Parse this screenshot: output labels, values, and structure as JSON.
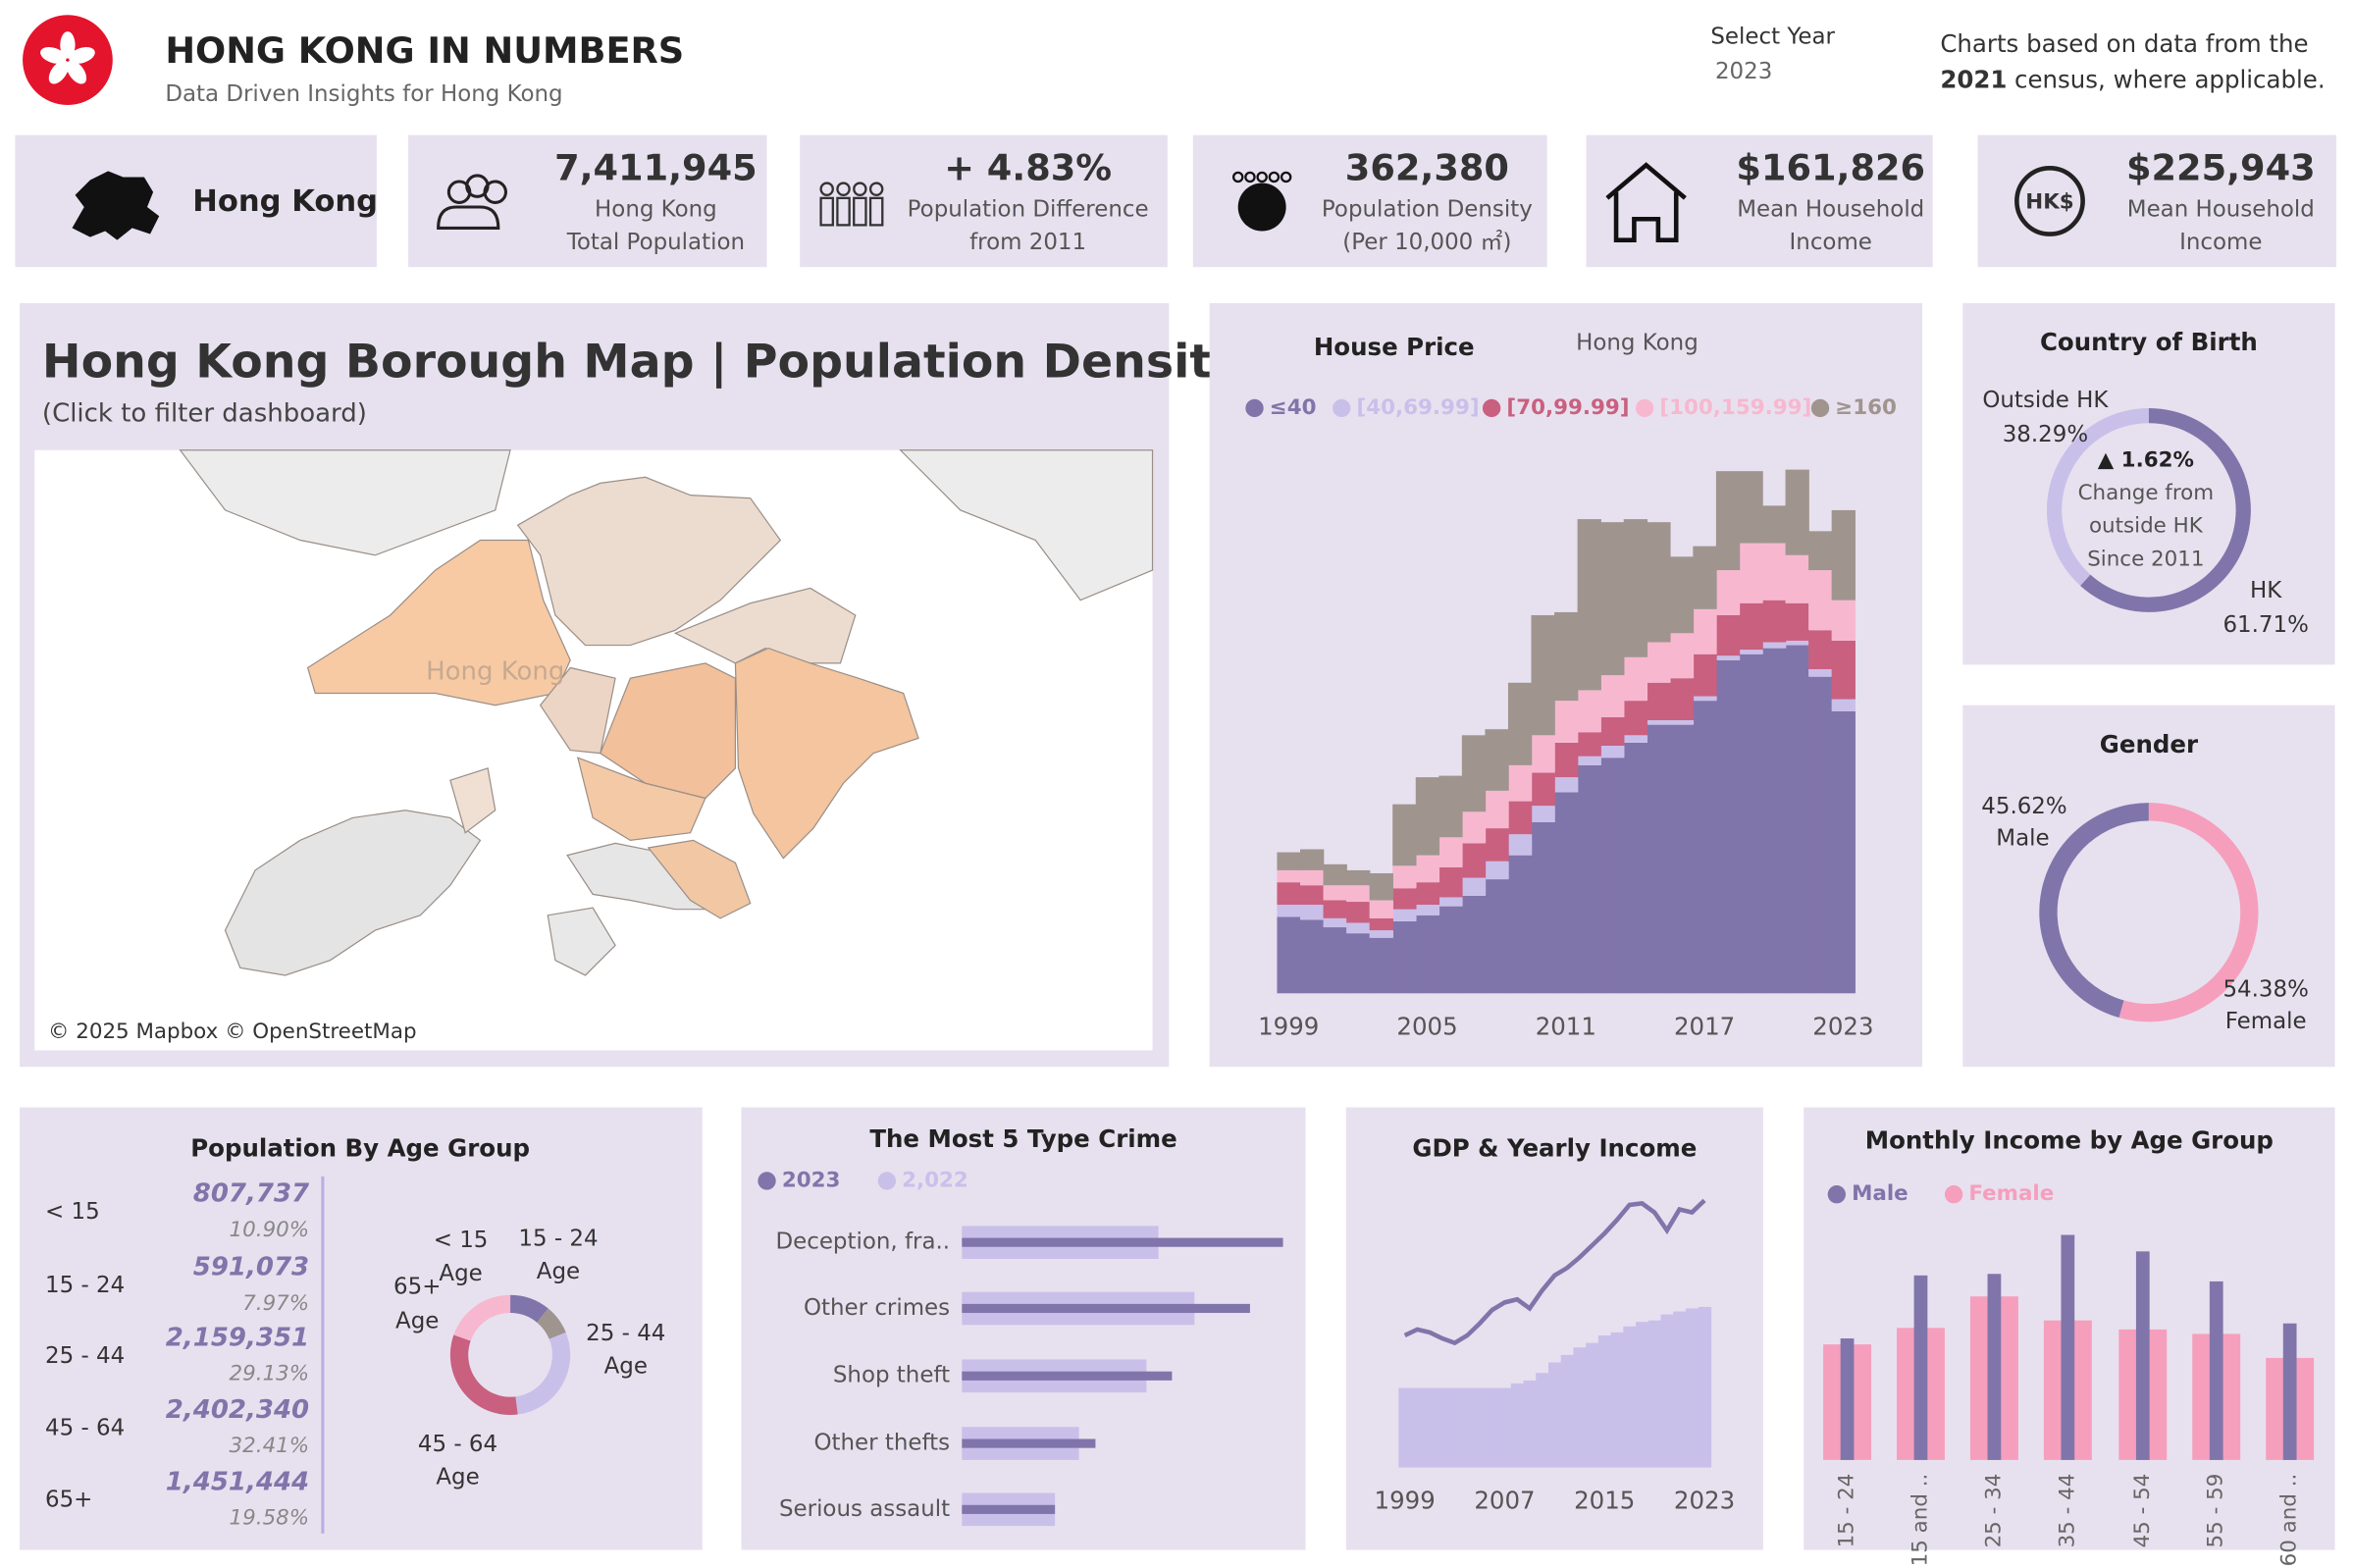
{
  "header": {
    "title": "HONG KONG IN NUMBERS",
    "subtitle": "Data Driven Insights for Hong Kong",
    "select_year_label": "Select Year",
    "select_year": "2023",
    "note": [
      "Charts based on data from the",
      "2021",
      "census, where applicable."
    ]
  },
  "kpis": [
    {
      "label": "Hong Kong"
    },
    {
      "value": "7,411,945",
      "lines": [
        "Hong Kong",
        "Total Population"
      ]
    },
    {
      "value": "+ 4.83%",
      "lines": [
        "Population Difference",
        "from 2011"
      ]
    },
    {
      "value": "362,380",
      "lines": [
        "Population Density",
        "(Per 10,000 ㎡)"
      ]
    },
    {
      "value": "$161,826",
      "lines": [
        "Mean Household",
        "Income"
      ]
    },
    {
      "value": "$225,943",
      "lines": [
        "Mean Household",
        "Income"
      ],
      "icon_text": "HK$"
    }
  ],
  "map": {
    "title": "Hong Kong Borough Map | Population Density",
    "subtitle": "(Click to filter dashboard)",
    "place_label": "Hong Kong",
    "credit": "© 2025 Mapbox © OpenStreetMap"
  },
  "chart_data": [
    {
      "type": "area",
      "stacked": true,
      "title": "House Price",
      "subtitle": "Hong Kong",
      "x": [
        1999,
        2000,
        2001,
        2002,
        2003,
        2004,
        2005,
        2006,
        2007,
        2008,
        2009,
        2010,
        2011,
        2012,
        2013,
        2014,
        2015,
        2016,
        2017,
        2018,
        2019,
        2020,
        2021,
        2022,
        2023
      ],
      "xlim": [
        1998.5,
        2023.5
      ],
      "xticks": [
        1999,
        2005,
        2011,
        2017,
        2023
      ],
      "ylim": [
        0,
        360
      ],
      "series": [
        {
          "name": "≤40",
          "color": "#8075aa",
          "values": [
            51,
            49,
            44,
            40,
            37,
            48,
            52,
            58,
            65,
            76,
            92,
            114,
            134,
            152,
            157,
            167,
            179,
            179,
            195,
            222,
            226,
            230,
            232,
            211,
            188
          ]
        },
        {
          "name": "[40,69.99]",
          "color": "#c9c0ea",
          "values": [
            8,
            10,
            6,
            7,
            5,
            8,
            7,
            6,
            12,
            12,
            14,
            11,
            10,
            6,
            8,
            5,
            3,
            3,
            3,
            3,
            3,
            4,
            3,
            5,
            8
          ]
        },
        {
          "name": "[70,99.99]",
          "color": "#c9607f",
          "values": [
            15,
            13,
            12,
            14,
            8,
            14,
            15,
            20,
            23,
            22,
            22,
            22,
            23,
            16,
            19,
            23,
            25,
            28,
            28,
            27,
            31,
            28,
            25,
            26,
            39
          ]
        },
        {
          "name": "[100,159.99]",
          "color": "#f7b8cf",
          "values": [
            8,
            10,
            10,
            11,
            12,
            15,
            18,
            20,
            21,
            25,
            24,
            25,
            28,
            28,
            28,
            29,
            27,
            30,
            30,
            30,
            40,
            38,
            32,
            40,
            27
          ]
        },
        {
          "name": "≥160",
          "color": "#a0948f",
          "values": [
            12,
            14,
            14,
            10,
            18,
            41,
            52,
            41,
            51,
            41,
            55,
            80,
            59,
            114,
            102,
            92,
            80,
            51,
            42,
            66,
            48,
            25,
            57,
            26,
            60
          ]
        }
      ]
    },
    {
      "type": "donut",
      "title": "Country of Birth",
      "categories": [
        "Outside HK",
        "HK"
      ],
      "values": [
        38.29,
        61.71
      ],
      "value_labels": [
        "38.29%",
        "61.71%"
      ],
      "colors": [
        "#c9c0ea",
        "#8075aa"
      ],
      "change": "▲ 1.62%",
      "change_lines": [
        "Change from",
        "outside HK",
        "Since 2011"
      ]
    },
    {
      "type": "donut",
      "title": "Gender",
      "categories": [
        "Male",
        "Female"
      ],
      "values": [
        45.62,
        54.38
      ],
      "value_labels": [
        "45.62%",
        "54.38%"
      ],
      "colors": [
        "#8075aa",
        "#f59fbd"
      ]
    },
    {
      "type": "donut",
      "title": "Population By Age Group",
      "categories": [
        "< 15",
        "15 - 24",
        "25 - 44",
        "45 - 64",
        "65+"
      ],
      "values": [
        807737,
        591073,
        2159351,
        2402340,
        1451444
      ],
      "value_labels": [
        "807,737",
        "591,073",
        "2,159,351",
        "2,402,340",
        "1,451,444"
      ],
      "shares": [
        10.9,
        7.97,
        29.13,
        32.41,
        19.58
      ],
      "share_labels": [
        "10.90%",
        "7.97%",
        "29.13%",
        "32.41%",
        "19.58%"
      ],
      "label_unit": "Age",
      "colors": [
        "#8075aa",
        "#a0948f",
        "#c9c0ea",
        "#c9607f",
        "#f7b8cf"
      ]
    },
    {
      "type": "bar",
      "orientation": "horizontal",
      "title": "The Most 5 Type Crime",
      "categories": [
        "Deception, fra..",
        "Other crimes",
        "Shop theft",
        "Other thefts",
        "Serious assault"
      ],
      "xlim": [
        0,
        220
      ],
      "series": [
        {
          "name": "2023",
          "color": "#8075aa",
          "values": [
            214,
            192,
            140,
            89,
            62
          ]
        },
        {
          "name": "2,022",
          "color": "#c9c0ea",
          "values": [
            131,
            155,
            123,
            78,
            62
          ]
        }
      ]
    },
    {
      "type": "combo",
      "title": "GDP & Yearly Income",
      "x": [
        1999,
        2000,
        2001,
        2002,
        2003,
        2004,
        2005,
        2006,
        2007,
        2008,
        2009,
        2010,
        2011,
        2012,
        2013,
        2014,
        2015,
        2016,
        2017,
        2018,
        2019,
        2020,
        2021,
        2022,
        2023
      ],
      "xlim": [
        1998.5,
        2023.5
      ],
      "xticks": [
        1999,
        2007,
        2015,
        2023
      ],
      "ylim": [
        0,
        190
      ],
      "series": [
        {
          "type": "area",
          "color": "#c9c0ea",
          "values": [
            53,
            53,
            53,
            53,
            53,
            53,
            53,
            53,
            53,
            56,
            58,
            63,
            70,
            75,
            80,
            83,
            88,
            90,
            94,
            97,
            98,
            102,
            104,
            106,
            107
          ]
        },
        {
          "type": "line",
          "color": "#8075aa",
          "values": [
            88,
            92,
            90,
            86,
            83,
            88,
            96,
            105,
            110,
            112,
            106,
            118,
            128,
            133,
            140,
            148,
            156,
            165,
            175,
            176,
            170,
            158,
            172,
            170,
            178
          ]
        }
      ]
    },
    {
      "type": "bar",
      "orientation": "vertical",
      "title": "Monthly Income by Age Group",
      "categories": [
        "15 - 24",
        "15 and ..",
        "25 - 34",
        "35 - 44",
        "45 - 54",
        "55 - 59",
        "60 and .."
      ],
      "ylim": [
        0,
        160
      ],
      "series": [
        {
          "name": "Male",
          "color": "#8075aa",
          "values": [
            81,
            123,
            124,
            150,
            139,
            119,
            91
          ]
        },
        {
          "name": "Female",
          "color": "#f59fbd",
          "values": [
            77,
            88,
            109,
            93,
            87,
            84,
            68
          ]
        }
      ]
    }
  ]
}
